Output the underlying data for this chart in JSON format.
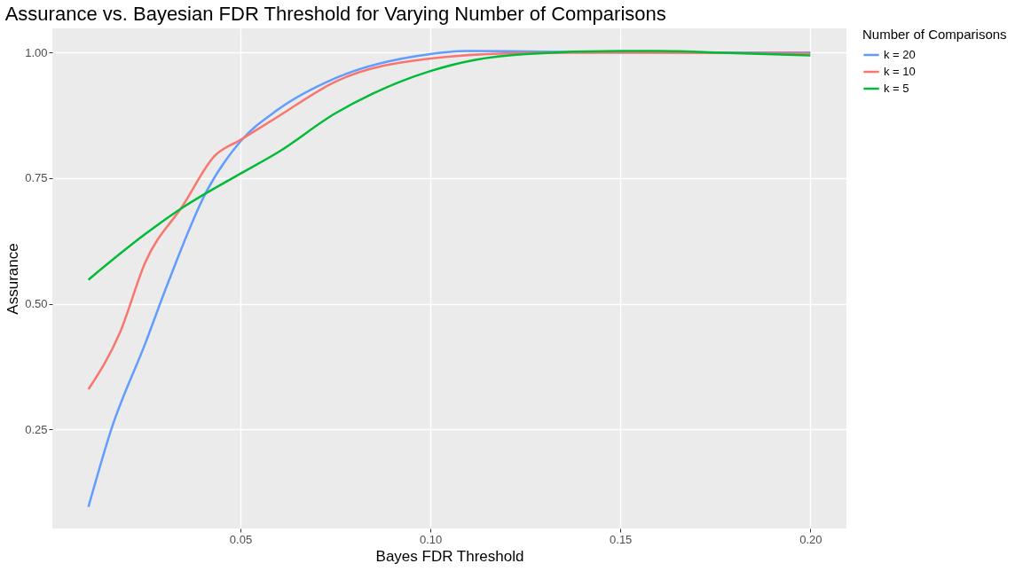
{
  "chart_data": {
    "type": "line",
    "title": "Assurance vs. Bayesian FDR Threshold for Varying Number of Comparisons",
    "xlabel": "Bayes FDR Threshold",
    "ylabel": "Assurance",
    "legend_title": "Number of Comparisons",
    "legend": "right",
    "grid": true,
    "line_style": "solid",
    "marker": "none",
    "xlim": [
      0.0005,
      0.2095
    ],
    "xticks": [
      {
        "value": 0.05,
        "label": "0.05"
      },
      {
        "value": 0.1,
        "label": "0.10"
      },
      {
        "value": 0.15,
        "label": "0.15"
      },
      {
        "value": 0.2,
        "label": "0.20"
      }
    ],
    "ylim": [
      0.053,
      1.048
    ],
    "yticks": [
      {
        "value": 0.25,
        "label": "0.25"
      },
      {
        "value": 0.5,
        "label": "0.50"
      },
      {
        "value": 0.75,
        "label": "0.75"
      },
      {
        "value": 1.0,
        "label": "1.00"
      }
    ],
    "series": [
      {
        "name": "k = 20",
        "color": "#619cff",
        "x": [
          0.01,
          0.0161,
          0.025,
          0.0308,
          0.0411,
          0.05,
          0.0598,
          0.075,
          0.1,
          0.1094,
          0.125,
          0.15,
          0.2
        ],
        "values": [
          0.096,
          0.252,
          0.422,
          0.539,
          0.724,
          0.823,
          0.886,
          0.949,
          0.997,
          1.003,
          1.002,
          1.0,
          1.0
        ]
      },
      {
        "name": "k = 10",
        "color": "#f8766d",
        "x": [
          0.01,
          0.0183,
          0.025,
          0.0349,
          0.0432,
          0.05,
          0.0598,
          0.075,
          0.1,
          0.125,
          0.15,
          0.2
        ],
        "values": [
          0.33,
          0.443,
          0.583,
          0.696,
          0.794,
          0.826,
          0.872,
          0.942,
          0.988,
          0.999,
          1.0,
          0.998
        ]
      },
      {
        "name": "k = 5",
        "color": "#00ba38",
        "x": [
          0.01,
          0.025,
          0.0349,
          0.05,
          0.0598,
          0.075,
          0.0848,
          0.1,
          0.1115,
          0.125,
          0.15,
          0.16,
          0.175,
          0.2
        ],
        "values": [
          0.548,
          0.639,
          0.692,
          0.759,
          0.801,
          0.879,
          0.918,
          0.963,
          0.985,
          0.997,
          1.003,
          1.003,
          1.0,
          0.994
        ]
      }
    ]
  }
}
